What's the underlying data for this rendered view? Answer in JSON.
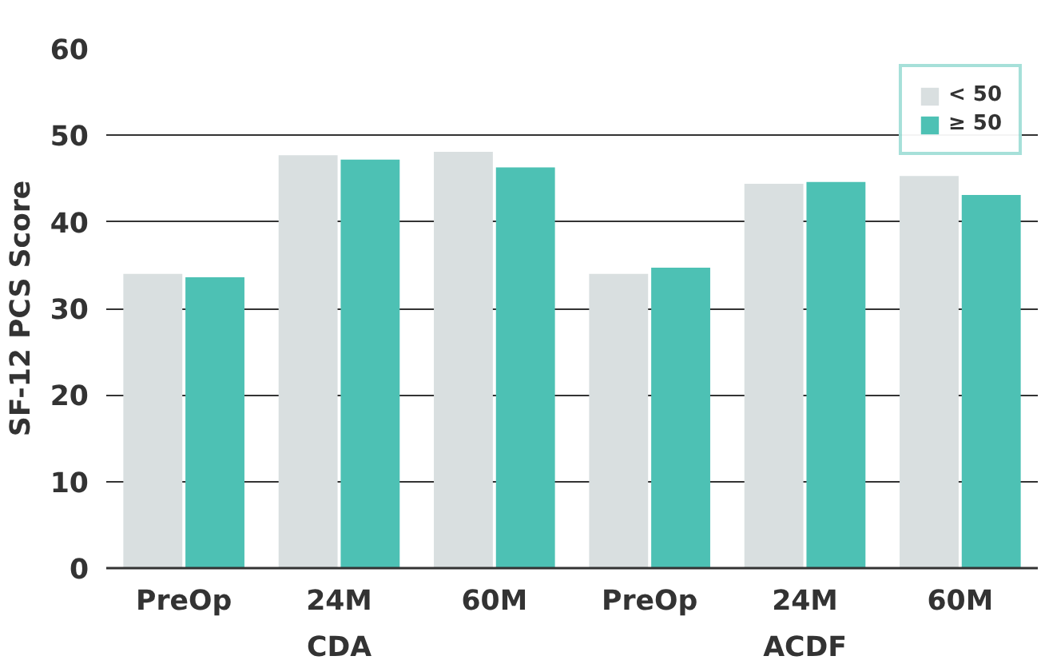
{
  "chart_data": {
    "type": "bar",
    "ylabel": "SF-12 PCS Score",
    "categories": [
      "PreOp",
      "24M",
      "60M",
      "PreOp",
      "24M",
      "60M"
    ],
    "annotations": [
      "CDA",
      "ACDF"
    ],
    "series": [
      {
        "name": "< 50",
        "color": "#d9dfe0",
        "values": [
          34.0,
          47.7,
          48.1,
          34.0,
          44.4,
          45.3
        ]
      },
      {
        "name": "≥ 50",
        "color": "#4dc1b4",
        "values": [
          33.6,
          47.2,
          46.3,
          34.7,
          44.6,
          43.1
        ]
      }
    ],
    "ylim": [
      0,
      60
    ],
    "yticks": [
      0,
      10,
      20,
      30,
      40,
      50,
      60
    ],
    "grid": "y",
    "legend": "top right"
  }
}
